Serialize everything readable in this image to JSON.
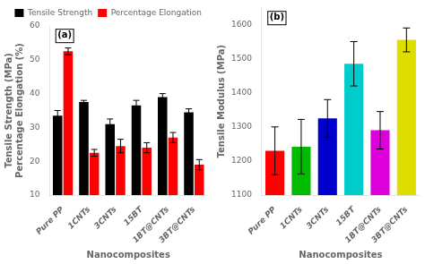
{
  "chart_data": [
    {
      "type": "bar",
      "categories": [
        "Pure PP",
        "1CNTs",
        "3CNTs",
        "15BT",
        "1BT@CNTs",
        "3BT@CNTs"
      ],
      "series": [
        {
          "name": "Tensile Strength",
          "color": "black",
          "values": [
            33.5,
            37.5,
            31.0,
            36.5,
            39.0,
            34.5
          ],
          "errors": [
            1.5,
            0.5,
            1.5,
            1.5,
            1.0,
            1.0
          ]
        },
        {
          "name": "Percentage Elongation",
          "color": "red",
          "values": [
            52.5,
            22.5,
            24.5,
            24.0,
            27.0,
            19.0
          ],
          "errors": [
            1.0,
            1.0,
            2.0,
            1.5,
            1.5,
            1.5
          ]
        }
      ],
      "xlabel": "Nanocomposites",
      "ylabel": "Tensile Strength (MPa)\nPercentage Elongation (%)",
      "ylim": [
        10,
        60
      ],
      "yticks": [
        10,
        20,
        30,
        40,
        50,
        60
      ],
      "legend": "upper right",
      "grid": false,
      "annotations": [
        "(a)"
      ]
    },
    {
      "type": "bar",
      "categories": [
        "Pure PP",
        "1CNTs",
        "3CNTs",
        "15BT",
        "1BT@CNTs",
        "3BT@CNTs"
      ],
      "values": [
        1230,
        1242,
        1325,
        1485,
        1290,
        1555
      ],
      "errors": [
        70,
        80,
        55,
        65,
        55,
        35
      ],
      "colors": [
        "#ff0000",
        "#00bb00",
        "#0000cc",
        "#00cccc",
        "#dd00dd",
        "#dddd00"
      ],
      "xlabel": "Nanocomposites",
      "ylabel": "Tensile Modulus (MPa)",
      "ylim": [
        1100,
        1650
      ],
      "yticks": [
        1100,
        1200,
        1300,
        1400,
        1500,
        1600
      ],
      "grid": false,
      "annotations": [
        "(b)"
      ]
    }
  ]
}
